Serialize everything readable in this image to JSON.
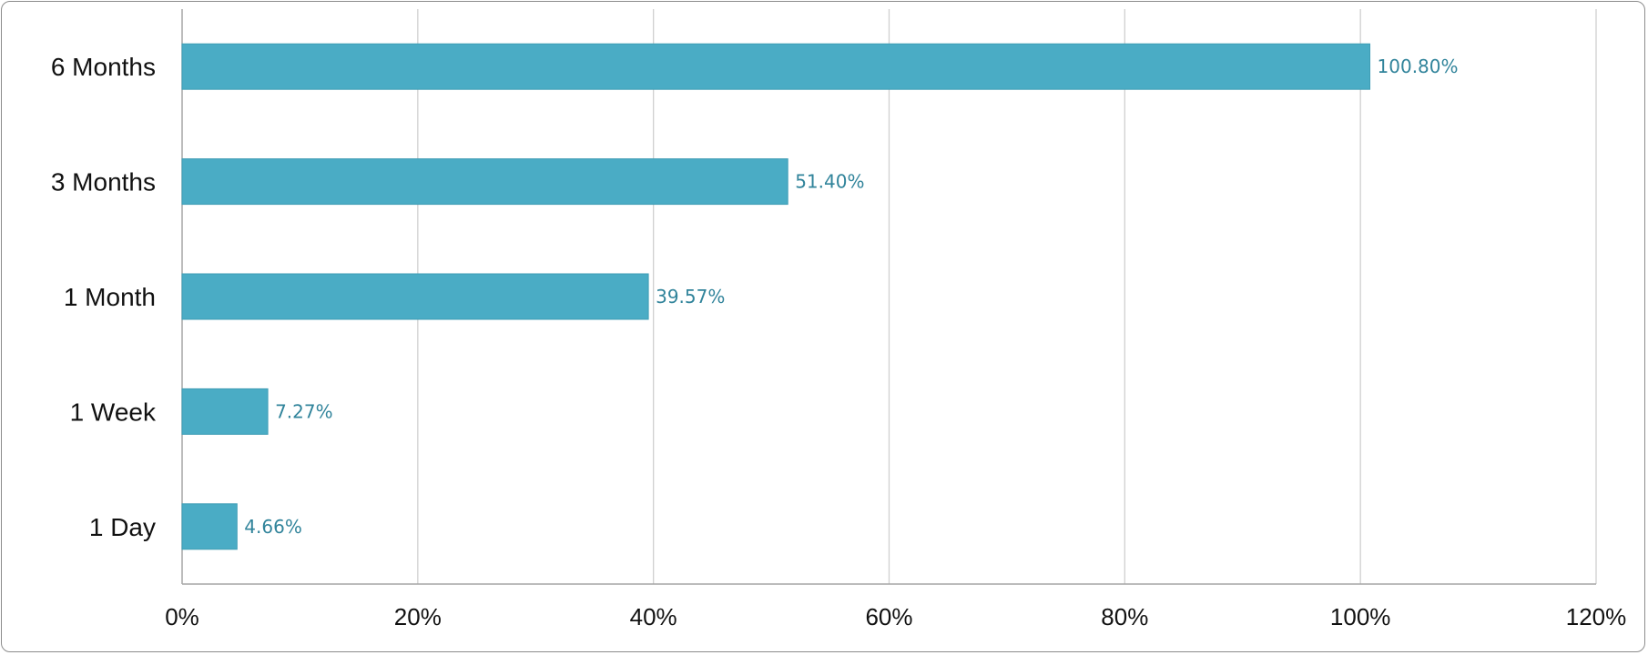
{
  "chart_data": {
    "type": "bar",
    "orientation": "horizontal",
    "categories": [
      "6 Months",
      "3 Months",
      "1 Month",
      "1 Week",
      "1 Day"
    ],
    "values": [
      100.8,
      51.4,
      39.57,
      7.27,
      4.66
    ],
    "data_labels": [
      "100.80%",
      "51.40%",
      "39.57%",
      "7.27%",
      "4.66%"
    ],
    "xlim": [
      0,
      120
    ],
    "x_ticks": [
      0,
      20,
      40,
      60,
      80,
      100,
      120
    ],
    "x_tick_labels": [
      "0%",
      "20%",
      "40%",
      "60%",
      "80%",
      "100%",
      "120%"
    ],
    "grid": "vertical",
    "legend": "none",
    "title": "",
    "xlabel": "",
    "ylabel": "",
    "colors": {
      "bar": "#4aacc5",
      "bar_edge": "#3f9db5",
      "data_label": "#31849b",
      "grid": "#d0d0d0",
      "axis": "#a6a6a6"
    }
  }
}
